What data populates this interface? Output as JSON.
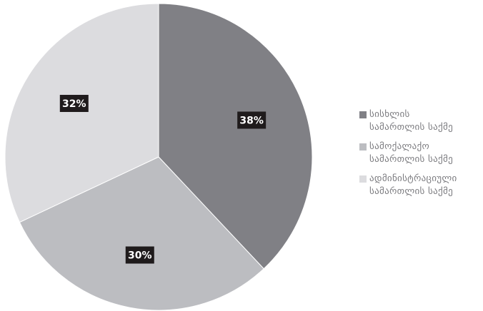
{
  "chart_data": {
    "type": "pie",
    "title": "",
    "slices": [
      {
        "label_lines": [
          "სისხლის",
          "სამართლის საქმე"
        ],
        "value": 38,
        "label": "38%",
        "color": "#808085"
      },
      {
        "label_lines": [
          "სამოქალაქო",
          "სამართლის საქმე"
        ],
        "value": 30,
        "label": "30%",
        "color": "#bcbdc1"
      },
      {
        "label_lines": [
          "ადმინისტრაციული",
          "სამართლის საქმე"
        ],
        "value": 32,
        "label": "32%",
        "color": "#dcdcdf"
      }
    ],
    "legend_position": "right",
    "start_angle": "top",
    "direction": "clockwise"
  },
  "colors": {
    "label_box": "#1f1b1c",
    "legend_text": "#7b7b7f",
    "slice_border": "#ffffff"
  }
}
